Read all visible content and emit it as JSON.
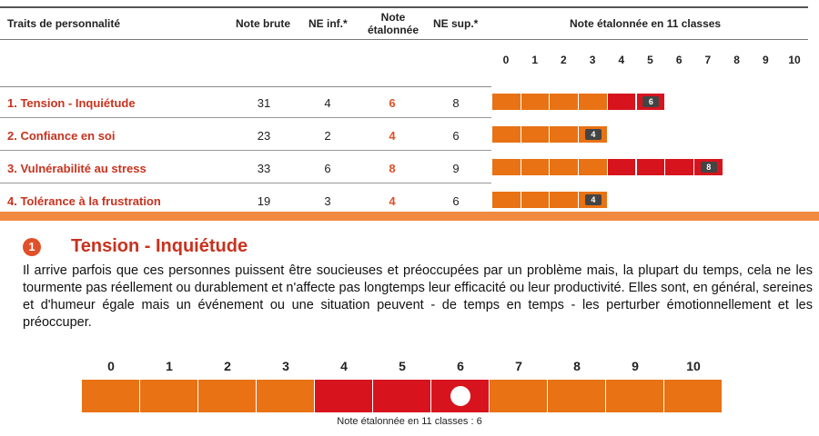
{
  "table": {
    "headers": {
      "traits": "Traits de personnalité",
      "note_brute": "Note brute",
      "ne_inf": "NE inf.*",
      "note_etalonnee_line1": "Note",
      "note_etalonnee_line2": "étalonnée",
      "ne_sup": "NE sup.*",
      "scale_title": "Note étalonnée en 11 classes"
    },
    "scale": [
      "0",
      "1",
      "2",
      "3",
      "4",
      "5",
      "6",
      "7",
      "8",
      "9",
      "10"
    ],
    "rows": [
      {
        "name": "1. Tension - Inquiétude",
        "brute": "31",
        "ne_inf": "4",
        "etalonnee": "6",
        "ne_sup": "8",
        "score": 6,
        "low": 4
      },
      {
        "name": "2. Confiance en soi",
        "brute": "23",
        "ne_inf": "2",
        "etalonnee": "4",
        "ne_sup": "6",
        "score": 4,
        "low": 4
      },
      {
        "name": "3. Vulnérabilité au stress",
        "brute": "33",
        "ne_inf": "6",
        "etalonnee": "8",
        "ne_sup": "9",
        "score": 8,
        "low": 4
      },
      {
        "name": "4. Tolérance à la frustration",
        "brute": "19",
        "ne_inf": "3",
        "etalonnee": "4",
        "ne_sup": "6",
        "score": 4,
        "low": 4
      }
    ]
  },
  "detail": {
    "number": "1",
    "title": "Tension - Inquiétude",
    "paragraph": "Il arrive parfois que ces personnes puissent être soucieuses et préoccupées par un problème mais, la plupart du temps, cela ne les tourmente pas réellement ou durablement et n'affecte pas longtemps leur efficacité ou leur productivité. Elles sont, en général, sereines et d'humeur égale mais un événement ou une situation peuvent - de temps en temps - les perturber émotionnellement et les préoccuper.",
    "scale": [
      "0",
      "1",
      "2",
      "3",
      "4",
      "5",
      "6",
      "7",
      "8",
      "9",
      "10"
    ],
    "score": 6,
    "red_range": [
      4,
      6
    ],
    "caption": "Note étalonnée en 11 classes : 6"
  },
  "colors": {
    "orange": "#e87214",
    "red": "#d7141e",
    "title_red": "#c8321e"
  }
}
